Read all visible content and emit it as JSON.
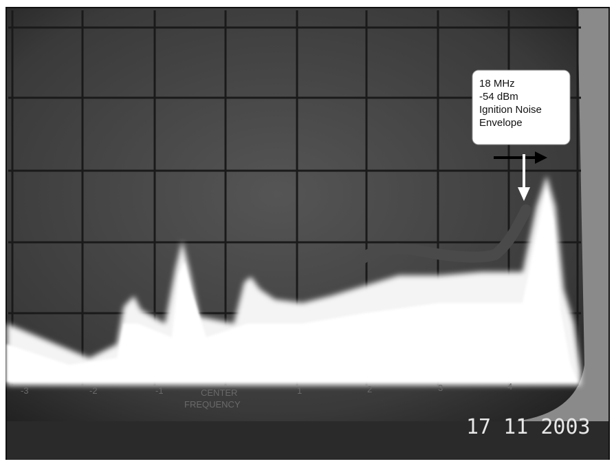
{
  "annotation": {
    "lines": [
      "18 MHz",
      "-54 dBm",
      "Ignition Noise",
      "Envelope"
    ]
  },
  "screen": {
    "axis_labels": [
      "-3",
      "-2",
      "-1",
      "1",
      "2",
      "3",
      "4"
    ],
    "center_label": [
      "CENTER",
      "FREQUENCY"
    ]
  },
  "date_stamp": "17 11 2003"
}
